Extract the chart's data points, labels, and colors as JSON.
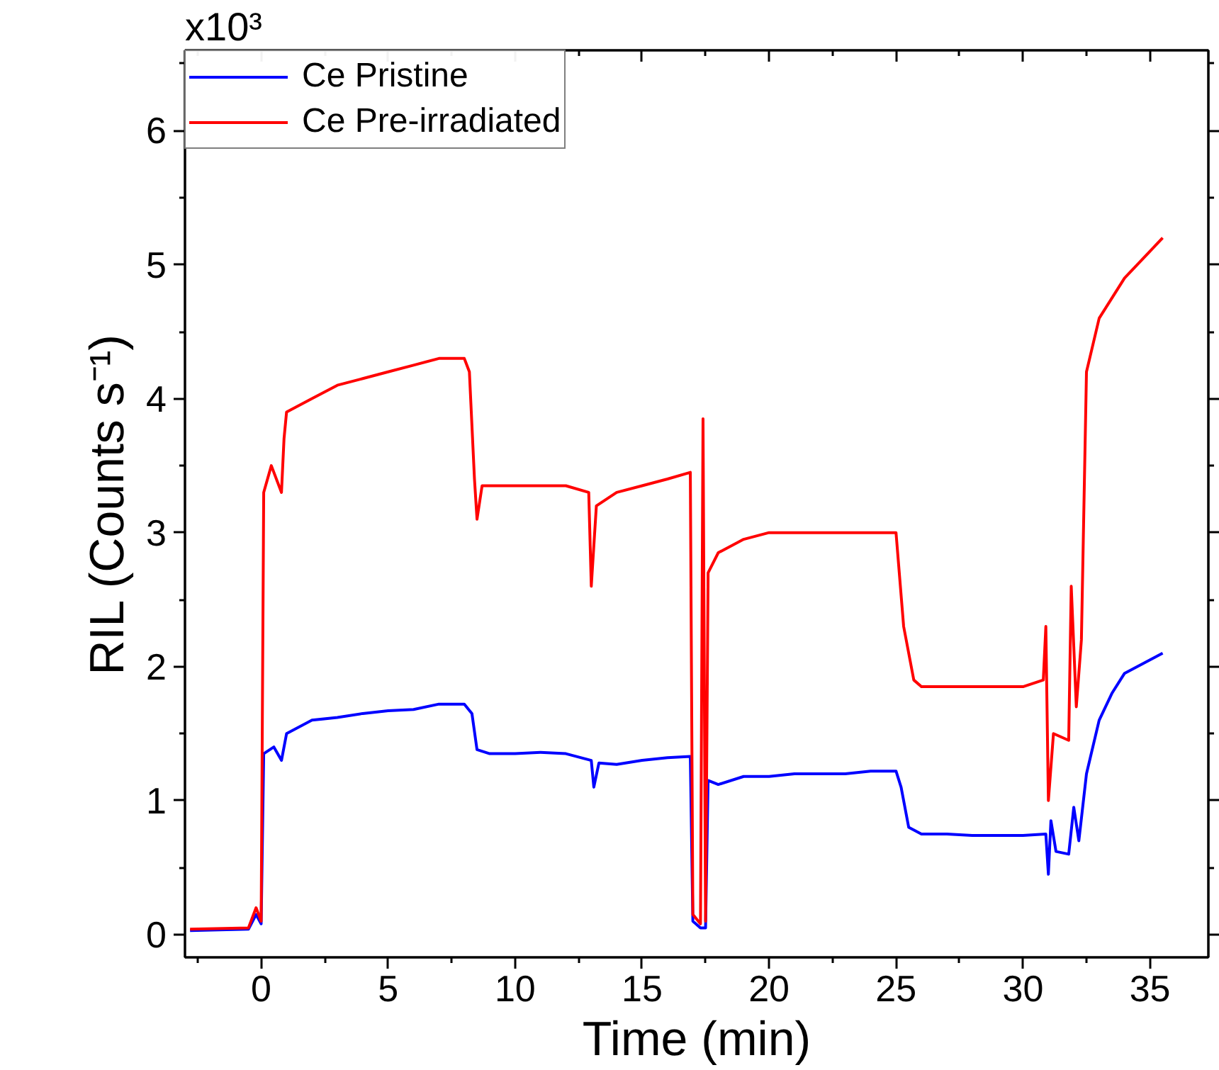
{
  "chart_data": {
    "type": "line",
    "xlabel": "Time (min)",
    "ylabel": "RIL (Counts s⁻¹)",
    "annotations": [
      "x10³"
    ],
    "xlim": [
      -3,
      37.3
    ],
    "ylim": [
      -0.17,
      6.6
    ],
    "xticks": [
      0,
      5,
      10,
      15,
      20,
      25,
      30,
      35
    ],
    "yticks": [
      0,
      1,
      2,
      3,
      4,
      5,
      6
    ],
    "grid": false,
    "legend": "top left",
    "line_style": "solid",
    "marker": "none",
    "series": [
      {
        "name": "Ce Pristine",
        "color": "#0000ff",
        "x": [
          -2.8,
          -0.5,
          -0.2,
          0,
          0.1,
          0.5,
          0.8,
          1,
          2,
          3,
          4,
          5,
          6,
          7,
          8,
          8.3,
          8.5,
          9,
          10,
          11,
          12,
          13,
          13.1,
          13.3,
          14,
          15,
          16,
          16.9,
          17,
          17.3,
          17.5,
          17.6,
          18,
          19,
          20,
          21,
          22,
          23,
          24,
          25,
          25.2,
          25.5,
          26,
          27,
          28,
          29,
          30,
          30.9,
          31,
          31.1,
          31.3,
          31.8,
          32,
          32.2,
          32.5,
          33,
          33.5,
          34,
          35,
          35.5
        ],
        "values": [
          0.03,
          0.04,
          0.15,
          0.08,
          1.35,
          1.4,
          1.3,
          1.5,
          1.6,
          1.62,
          1.65,
          1.67,
          1.68,
          1.72,
          1.72,
          1.65,
          1.38,
          1.35,
          1.35,
          1.36,
          1.35,
          1.3,
          1.1,
          1.28,
          1.27,
          1.3,
          1.32,
          1.33,
          0.1,
          0.05,
          0.05,
          1.15,
          1.12,
          1.18,
          1.18,
          1.2,
          1.2,
          1.2,
          1.22,
          1.22,
          1.1,
          0.8,
          0.75,
          0.75,
          0.74,
          0.74,
          0.74,
          0.75,
          0.45,
          0.85,
          0.62,
          0.6,
          0.95,
          0.7,
          1.2,
          1.6,
          1.8,
          1.95,
          2.05,
          2.1
        ]
      },
      {
        "name": "Ce Pre-irradiated",
        "color": "#ff0000",
        "x": [
          -2.8,
          -0.5,
          -0.2,
          0,
          0.1,
          0.4,
          0.8,
          0.9,
          1,
          2,
          3,
          4,
          5,
          6,
          7,
          8,
          8.2,
          8.4,
          8.5,
          8.7,
          10,
          11,
          12,
          12.9,
          13,
          13.2,
          14,
          15,
          16,
          16.9,
          17,
          17.3,
          17.4,
          17.5,
          17.6,
          18,
          19,
          20,
          21,
          22,
          23,
          24,
          25,
          25.3,
          25.7,
          26,
          27,
          28,
          29,
          30,
          30.8,
          30.9,
          31,
          31.2,
          31.8,
          31.9,
          32.1,
          32.3,
          32.5,
          33,
          34,
          35,
          35.5
        ],
        "values": [
          0.04,
          0.05,
          0.2,
          0.1,
          3.3,
          3.5,
          3.3,
          3.7,
          3.9,
          4.0,
          4.1,
          4.15,
          4.2,
          4.25,
          4.3,
          4.3,
          4.2,
          3.4,
          3.1,
          3.35,
          3.35,
          3.35,
          3.35,
          3.3,
          2.6,
          3.2,
          3.3,
          3.35,
          3.4,
          3.45,
          0.15,
          0.08,
          3.85,
          0.1,
          2.7,
          2.85,
          2.95,
          3.0,
          3.0,
          3.0,
          3.0,
          3.0,
          3.0,
          2.3,
          1.9,
          1.85,
          1.85,
          1.85,
          1.85,
          1.85,
          1.9,
          2.3,
          1.0,
          1.5,
          1.45,
          2.6,
          1.7,
          2.2,
          4.2,
          4.6,
          4.9,
          5.1,
          5.2
        ]
      }
    ]
  }
}
